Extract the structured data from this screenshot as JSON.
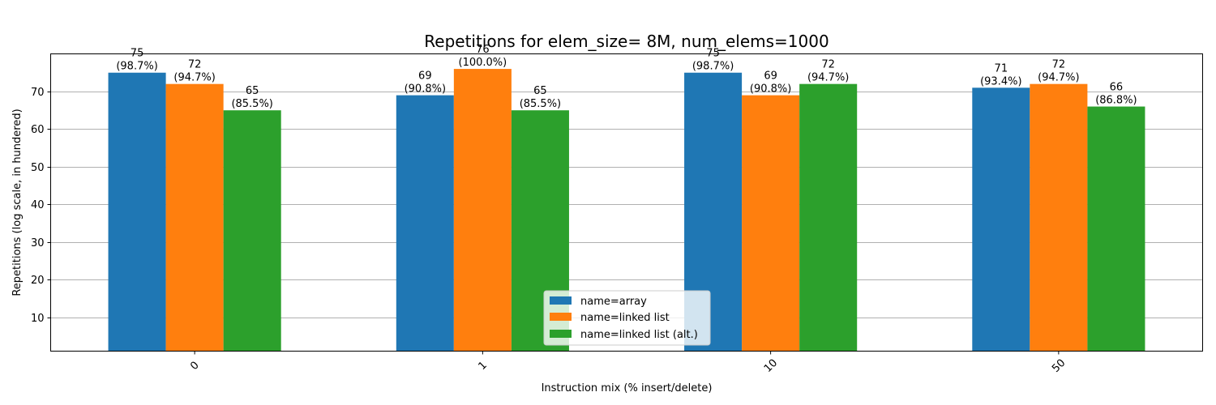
{
  "chart_data": {
    "type": "bar",
    "title": "Repetitions for elem_size= 8M, num_elems=1000",
    "xlabel": "Instruction mix (% insert/delete)",
    "ylabel": "Repetitions (log scale, in hundered)",
    "categories": [
      "0",
      "1",
      "10",
      "50"
    ],
    "ylim": [
      1,
      80
    ],
    "yticks": [
      10,
      20,
      30,
      40,
      50,
      60,
      70
    ],
    "grid": "horizontal",
    "legend_position": "bottom-center",
    "series": [
      {
        "name": "name=array",
        "color": "#1f77b4",
        "values": [
          75,
          69,
          75,
          71
        ],
        "labels": [
          "(98.7%)",
          "(90.8%)",
          "(98.7%)",
          "(93.4%)"
        ]
      },
      {
        "name": "name=linked list",
        "color": "#ff7f0e",
        "values": [
          72,
          76,
          69,
          72
        ],
        "labels": [
          "(94.7%)",
          "(100.0%)",
          "(90.8%)",
          "(94.7%)"
        ]
      },
      {
        "name": "name=linked list (alt.)",
        "color": "#2ca02c",
        "values": [
          65,
          65,
          72,
          66
        ],
        "labels": [
          "(85.5%)",
          "(85.5%)",
          "(94.7%)",
          "(86.8%)"
        ]
      }
    ]
  }
}
